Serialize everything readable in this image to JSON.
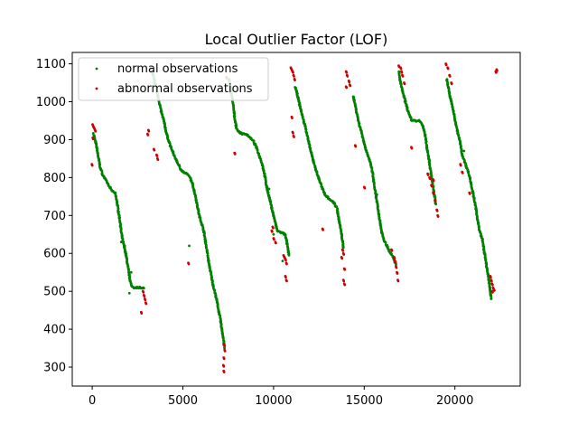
{
  "chart_data": {
    "type": "scatter",
    "title": "Local Outlier Factor (LOF)",
    "xlabel": "",
    "ylabel": "",
    "xlim": [
      -1100,
      23600
    ],
    "ylim": [
      250,
      1130
    ],
    "xticks": [
      0,
      5000,
      10000,
      15000,
      20000
    ],
    "yticks": [
      300,
      400,
      500,
      600,
      700,
      800,
      900,
      1000,
      1100
    ],
    "grid": false,
    "legend_position": "top-left",
    "series": [
      {
        "name": "normal observations",
        "color": "#008000",
        "segments": [
          [
            [
              80,
              915
            ],
            [
              250,
              880
            ],
            [
              350,
              850
            ],
            [
              450,
              825
            ],
            [
              600,
              805
            ],
            [
              800,
              790
            ],
            [
              950,
              775
            ],
            [
              1100,
              765
            ],
            [
              1250,
              760
            ],
            [
              1350,
              740
            ],
            [
              1450,
              710
            ],
            [
              1550,
              680
            ],
            [
              1600,
              655
            ],
            [
              1700,
              630
            ],
            [
              1850,
              600
            ],
            [
              1950,
              570
            ],
            [
              2050,
              540
            ],
            [
              2150,
              515
            ],
            [
              2300,
              510
            ],
            [
              2500,
              510
            ],
            [
              2700,
              510
            ],
            [
              2850,
              508
            ]
          ],
          [
            [
              3300,
              1080
            ],
            [
              3500,
              1040
            ],
            [
              3650,
              1010
            ],
            [
              3800,
              975
            ],
            [
              3950,
              950
            ],
            [
              4100,
              915
            ],
            [
              4300,
              885
            ],
            [
              4500,
              860
            ],
            [
              4700,
              840
            ],
            [
              4850,
              825
            ],
            [
              5000,
              815
            ],
            [
              5200,
              810
            ],
            [
              5400,
              800
            ],
            [
              5550,
              780
            ],
            [
              5700,
              750
            ],
            [
              5800,
              725
            ],
            [
              5900,
              700
            ],
            [
              6000,
              685
            ],
            [
              6150,
              660
            ],
            [
              6250,
              630
            ],
            [
              6350,
              600
            ],
            [
              6450,
              570
            ],
            [
              6550,
              545
            ],
            [
              6650,
              520
            ],
            [
              6750,
              500
            ],
            [
              6850,
              480
            ],
            [
              6950,
              455
            ],
            [
              7050,
              430
            ],
            [
              7150,
              400
            ],
            [
              7250,
              370
            ],
            [
              7300,
              350
            ]
          ],
          [
            [
              7550,
              1060
            ],
            [
              7650,
              1030
            ],
            [
              7750,
              1000
            ],
            [
              7850,
              960
            ],
            [
              7950,
              930
            ],
            [
              8100,
              920
            ],
            [
              8300,
              915
            ],
            [
              8500,
              915
            ],
            [
              8700,
              905
            ],
            [
              8900,
              895
            ],
            [
              9050,
              880
            ],
            [
              9200,
              860
            ],
            [
              9350,
              840
            ],
            [
              9500,
              810
            ],
            [
              9600,
              780
            ],
            [
              9750,
              750
            ],
            [
              9900,
              720
            ],
            [
              10050,
              690
            ],
            [
              10200,
              660
            ],
            [
              10400,
              655
            ],
            [
              10650,
              650
            ],
            [
              10850,
              595
            ]
          ],
          [
            [
              11200,
              1040
            ],
            [
              11400,
              1000
            ],
            [
              11600,
              960
            ],
            [
              11800,
              925
            ],
            [
              11950,
              890
            ],
            [
              12100,
              860
            ],
            [
              12250,
              835
            ],
            [
              12400,
              810
            ],
            [
              12550,
              790
            ],
            [
              12700,
              770
            ],
            [
              12850,
              755
            ],
            [
              13050,
              745
            ],
            [
              13300,
              735
            ],
            [
              13500,
              720
            ],
            [
              13600,
              690
            ],
            [
              13750,
              650
            ],
            [
              13850,
              615
            ]
          ],
          [
            [
              14400,
              1015
            ],
            [
              14550,
              980
            ],
            [
              14700,
              945
            ],
            [
              14850,
              920
            ],
            [
              15000,
              890
            ],
            [
              15150,
              865
            ],
            [
              15300,
              845
            ],
            [
              15450,
              815
            ],
            [
              15550,
              780
            ],
            [
              15650,
              750
            ],
            [
              15750,
              720
            ],
            [
              15850,
              690
            ],
            [
              15950,
              660
            ],
            [
              16050,
              640
            ],
            [
              16200,
              625
            ],
            [
              16400,
              605
            ],
            [
              16600,
              590
            ],
            [
              16750,
              570
            ]
          ],
          [
            [
              16900,
              1080
            ],
            [
              17000,
              1050
            ],
            [
              17150,
              1020
            ],
            [
              17300,
              995
            ],
            [
              17450,
              970
            ],
            [
              17600,
              952
            ],
            [
              17800,
              950
            ],
            [
              18050,
              950
            ],
            [
              18200,
              940
            ],
            [
              18350,
              915
            ],
            [
              18450,
              880
            ],
            [
              18550,
              855
            ],
            [
              18650,
              820
            ],
            [
              18750,
              790
            ],
            [
              18850,
              760
            ],
            [
              18950,
              730
            ]
          ],
          [
            [
              19550,
              1060
            ],
            [
              19700,
              1020
            ],
            [
              19850,
              990
            ],
            [
              20000,
              955
            ],
            [
              20150,
              920
            ],
            [
              20300,
              890
            ],
            [
              20400,
              860
            ],
            [
              20550,
              840
            ],
            [
              20700,
              820
            ],
            [
              20850,
              795
            ],
            [
              20950,
              770
            ],
            [
              21050,
              745
            ],
            [
              21150,
              720
            ],
            [
              21250,
              690
            ],
            [
              21350,
              660
            ],
            [
              21500,
              640
            ],
            [
              21600,
              610
            ],
            [
              21700,
              580
            ],
            [
              21800,
              550
            ],
            [
              21900,
              520
            ],
            [
              21950,
              500
            ],
            [
              22000,
              480
            ]
          ]
        ],
        "points": [
          [
            1600,
            630
          ],
          [
            1800,
            620
          ],
          [
            2050,
            495
          ],
          [
            2150,
            550
          ],
          [
            5350,
            620
          ],
          [
            7200,
            380
          ],
          [
            9750,
            770
          ],
          [
            10000,
            650
          ],
          [
            10500,
            580
          ],
          [
            12500,
            800
          ],
          [
            15700,
            755
          ],
          [
            18600,
            845
          ],
          [
            20500,
            870
          ],
          [
            21300,
            680
          ]
        ]
      },
      {
        "name": "abnormal observations",
        "color": "#cc0000",
        "points": [
          [
            20,
            940
          ],
          [
            60,
            935
          ],
          [
            120,
            930
          ],
          [
            160,
            925
          ],
          [
            30,
            905
          ],
          [
            -20,
            835
          ],
          [
            2800,
            500
          ],
          [
            2850,
            490
          ],
          [
            2900,
            480
          ],
          [
            2950,
            470
          ],
          [
            2700,
            445
          ],
          [
            3100,
            925
          ],
          [
            3050,
            915
          ],
          [
            3200,
            1090
          ],
          [
            3400,
            875
          ],
          [
            3550,
            860
          ],
          [
            3600,
            850
          ],
          [
            5300,
            575
          ],
          [
            7250,
            360
          ],
          [
            7300,
            345
          ],
          [
            7250,
            325
          ],
          [
            7230,
            305
          ],
          [
            7250,
            290
          ],
          [
            7400,
            1065
          ],
          [
            7850,
            865
          ],
          [
            9950,
            670
          ],
          [
            9900,
            660
          ],
          [
            10000,
            640
          ],
          [
            10100,
            630
          ],
          [
            10550,
            595
          ],
          [
            10600,
            590
          ],
          [
            10650,
            585
          ],
          [
            10700,
            575
          ],
          [
            10650,
            540
          ],
          [
            10700,
            530
          ],
          [
            10950,
            1090
          ],
          [
            11000,
            1085
          ],
          [
            11050,
            1080
          ],
          [
            11100,
            1070
          ],
          [
            11150,
            1060
          ],
          [
            11000,
            960
          ],
          [
            11050,
            920
          ],
          [
            11100,
            910
          ],
          [
            12700,
            665
          ],
          [
            13800,
            610
          ],
          [
            13850,
            600
          ],
          [
            13750,
            590
          ],
          [
            13900,
            560
          ],
          [
            13850,
            530
          ],
          [
            13900,
            520
          ],
          [
            14000,
            1080
          ],
          [
            14050,
            1070
          ],
          [
            14150,
            1055
          ],
          [
            14200,
            1045
          ],
          [
            14000,
            1040
          ],
          [
            14500,
            885
          ],
          [
            15000,
            775
          ],
          [
            16500,
            610
          ],
          [
            16650,
            590
          ],
          [
            16700,
            580
          ],
          [
            16750,
            565
          ],
          [
            16800,
            550
          ],
          [
            16850,
            530
          ],
          [
            16900,
            1095
          ],
          [
            17000,
            1090
          ],
          [
            17050,
            1080
          ],
          [
            17100,
            1070
          ],
          [
            17200,
            1050
          ],
          [
            17600,
            880
          ],
          [
            18500,
            810
          ],
          [
            18600,
            800
          ],
          [
            18700,
            780
          ],
          [
            18800,
            760
          ],
          [
            18900,
            740
          ],
          [
            19000,
            715
          ],
          [
            19050,
            700
          ],
          [
            18800,
            795
          ],
          [
            19500,
            1100
          ],
          [
            19600,
            1090
          ],
          [
            19700,
            1070
          ],
          [
            19800,
            1050
          ],
          [
            20300,
            835
          ],
          [
            20400,
            815
          ],
          [
            20800,
            760
          ],
          [
            21950,
            540
          ],
          [
            22000,
            530
          ],
          [
            22050,
            520
          ],
          [
            22100,
            510
          ],
          [
            22050,
            500
          ],
          [
            22150,
            505
          ],
          [
            22300,
            1085
          ],
          [
            22250,
            1080
          ]
        ]
      }
    ]
  }
}
